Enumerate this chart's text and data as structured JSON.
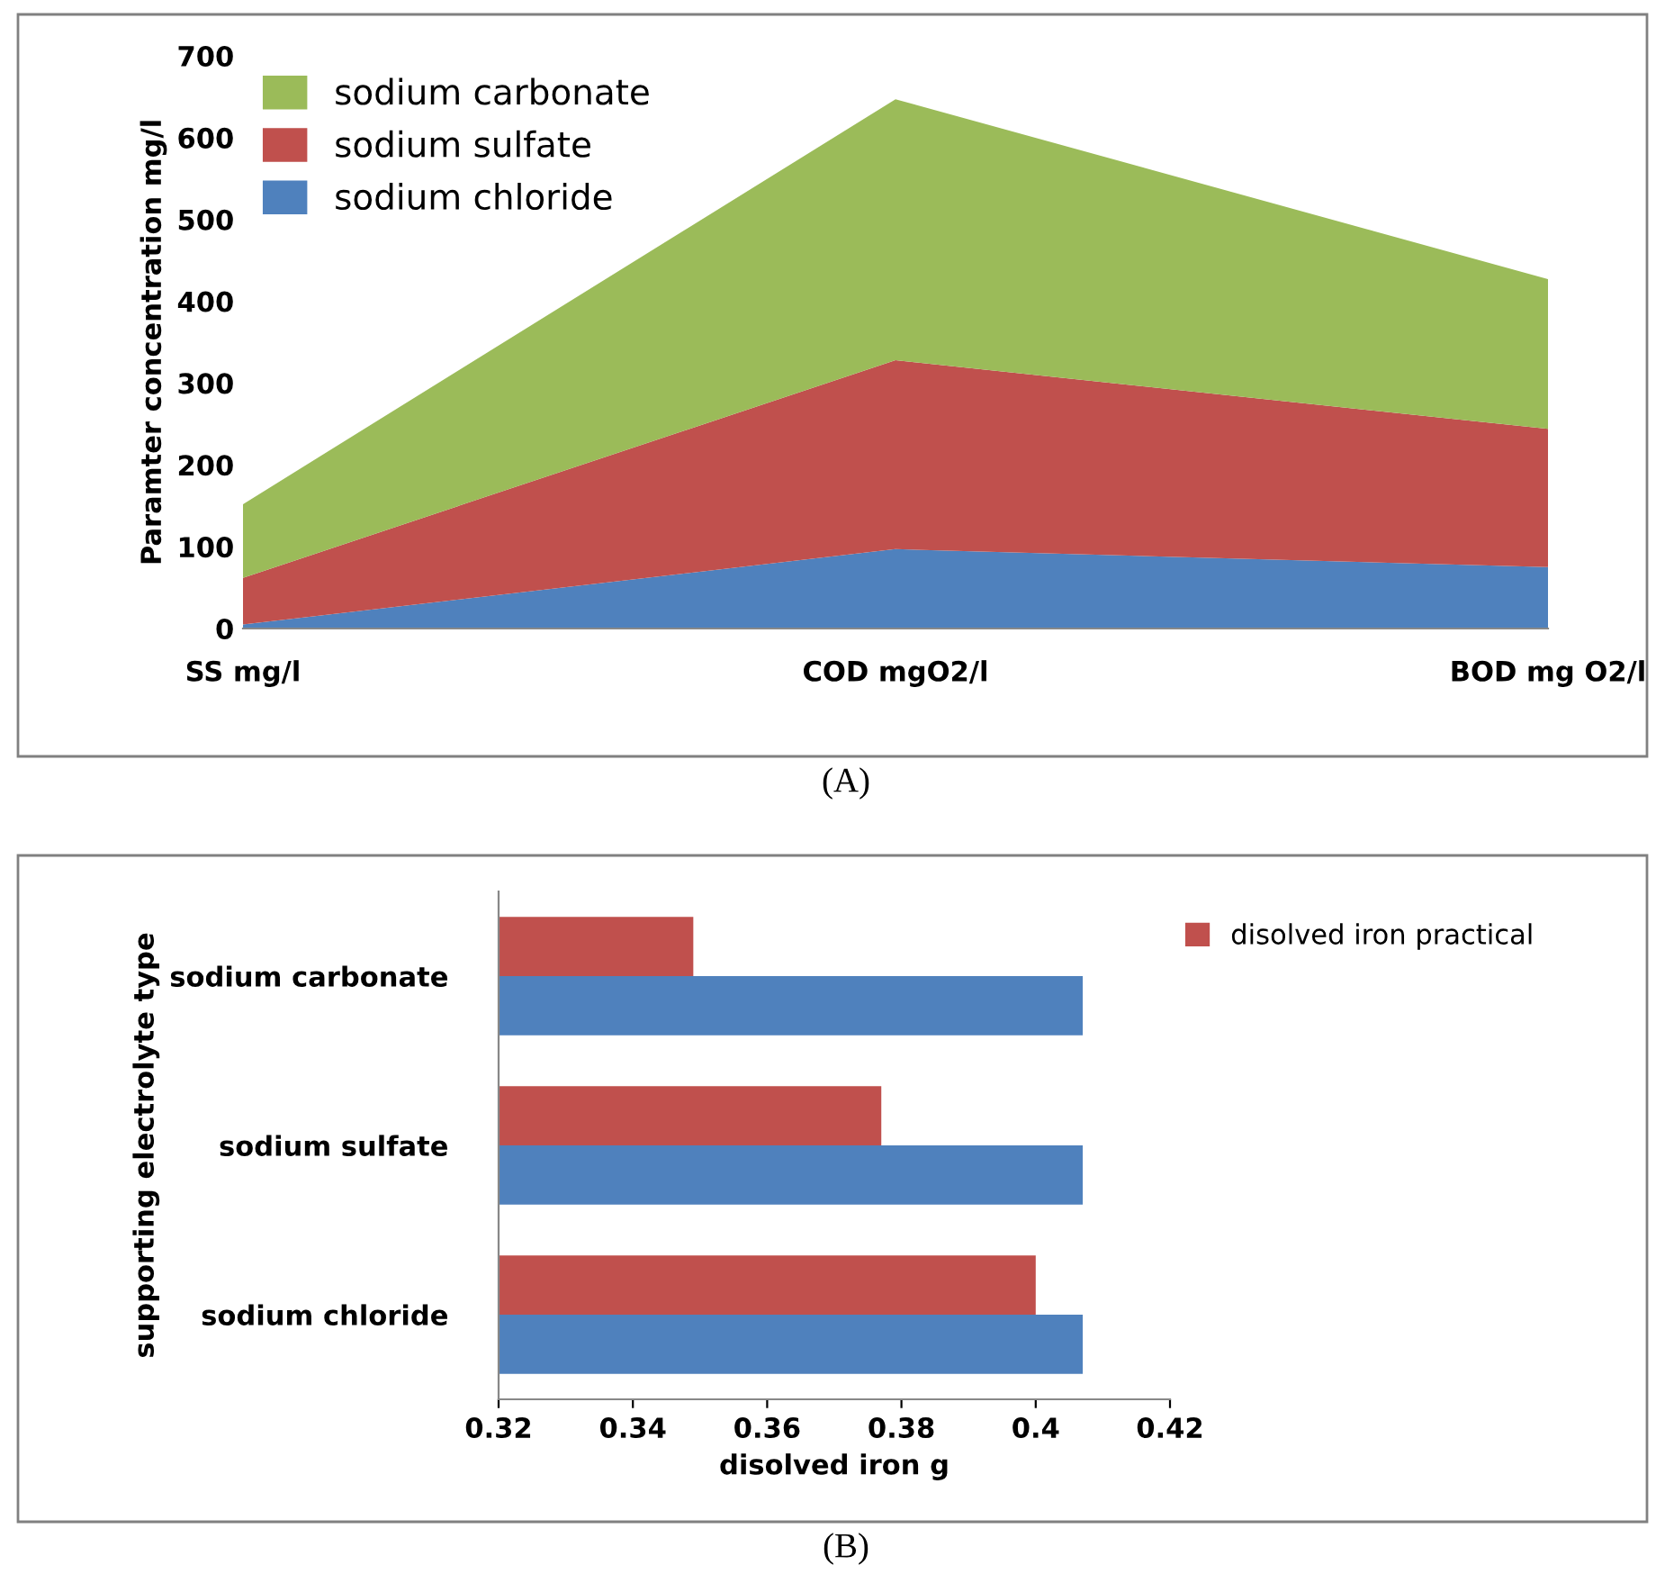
{
  "chart_data": [
    {
      "type": "area",
      "stacked": true,
      "categories": [
        "SS mg/l",
        "COD mgO2/l",
        "BOD mg O2/l"
      ],
      "ylabel": "Paramter concentration mg/l",
      "ylim": [
        0,
        700
      ],
      "yticks": [
        0,
        100,
        200,
        300,
        400,
        500,
        600,
        700
      ],
      "legend": "top left",
      "grid": false,
      "annotations": [
        "(A)"
      ],
      "series": [
        {
          "name": "sodium chloride",
          "color": "#4f81bd",
          "values": [
            5,
            97,
            75
          ]
        },
        {
          "name": "sodium sulfate",
          "color": "#c0504d",
          "values": [
            57,
            231,
            169
          ]
        },
        {
          "name": "sodium carbonate",
          "color": "#9bbb59",
          "values": [
            90,
            319,
            183
          ]
        }
      ]
    },
    {
      "type": "bar",
      "orientation": "horizontal",
      "categories": [
        "sodium carbonate",
        "sodium sulfate",
        "sodium chloride"
      ],
      "xlabel": "disolved iron g",
      "ylabel": "supporting electrolyte type",
      "xlim": [
        0.32,
        0.42
      ],
      "xticks": [
        0.32,
        0.34,
        0.36,
        0.38,
        0.4,
        0.42
      ],
      "legend": "top right",
      "grid": false,
      "annotations": [
        "(B)"
      ],
      "series": [
        {
          "color": "#4f81bd",
          "values": [
            0.407,
            0.407,
            0.407
          ]
        },
        {
          "name": "disolved iron practical",
          "color": "#c0504d",
          "values": [
            0.349,
            0.377,
            0.4
          ]
        }
      ]
    }
  ]
}
